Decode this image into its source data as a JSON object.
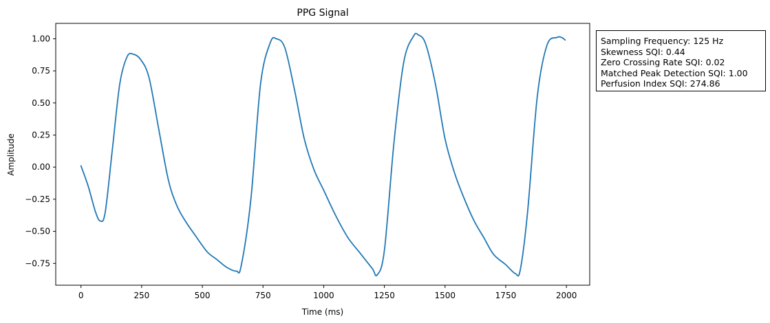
{
  "chart_data": {
    "type": "line",
    "title": "PPG Signal",
    "xlabel": "Time (ms)",
    "ylabel": "Amplitude",
    "xlim": [
      -104,
      2096
    ],
    "ylim": [
      -0.92,
      1.12
    ],
    "xticks": [
      0,
      250,
      500,
      750,
      1000,
      1250,
      1500,
      1750,
      2000
    ],
    "yticks": [
      -0.75,
      -0.5,
      -0.25,
      0.0,
      0.25,
      0.5,
      0.75,
      1.0
    ],
    "xtick_labels": [
      "0",
      "250",
      "500",
      "750",
      "1000",
      "1250",
      "1500",
      "1750",
      "2000"
    ],
    "ytick_labels": [
      "−0.75",
      "−0.50",
      "−0.25",
      "0.00",
      "0.25",
      "0.50",
      "0.75",
      "1.00"
    ],
    "grid": false,
    "line_color": "#1f77b4",
    "series": [
      {
        "x": [
          0,
          30,
          60,
          80,
          100,
          130,
          160,
          190,
          215,
          245,
          280,
          320,
          360,
          395,
          430,
          470,
          520,
          560,
          600,
          640,
          660,
          700,
          740,
          780,
          805,
          840,
          880,
          920,
          960,
          1000,
          1050,
          1100,
          1150,
          1200,
          1220,
          1250,
          1290,
          1330,
          1370,
          1390,
          1420,
          1460,
          1500,
          1540,
          1580,
          1620,
          1660,
          1700,
          1750,
          1790,
          1810,
          1840,
          1880,
          1920,
          1960,
          1980,
          1995
        ],
        "y": [
          0.01,
          -0.15,
          -0.35,
          -0.42,
          -0.35,
          0.15,
          0.65,
          0.86,
          0.88,
          0.84,
          0.7,
          0.3,
          -0.1,
          -0.3,
          -0.42,
          -0.53,
          -0.66,
          -0.72,
          -0.78,
          -0.81,
          -0.77,
          -0.25,
          0.65,
          0.97,
          1.0,
          0.93,
          0.6,
          0.22,
          -0.02,
          -0.18,
          -0.38,
          -0.55,
          -0.67,
          -0.79,
          -0.84,
          -0.65,
          0.2,
          0.82,
          1.02,
          1.03,
          0.96,
          0.65,
          0.22,
          -0.05,
          -0.25,
          -0.42,
          -0.55,
          -0.68,
          -0.76,
          -0.83,
          -0.8,
          -0.35,
          0.55,
          0.95,
          1.01,
          1.01,
          0.99
        ]
      }
    ]
  },
  "info_box": {
    "lines": [
      "Sampling Frequency: 125 Hz",
      "Skewness SQI: 0.44",
      "Zero Crossing Rate SQI: 0.02",
      "Matched Peak Detection SQI: 1.00",
      "Perfusion Index SQI: 274.86"
    ]
  }
}
